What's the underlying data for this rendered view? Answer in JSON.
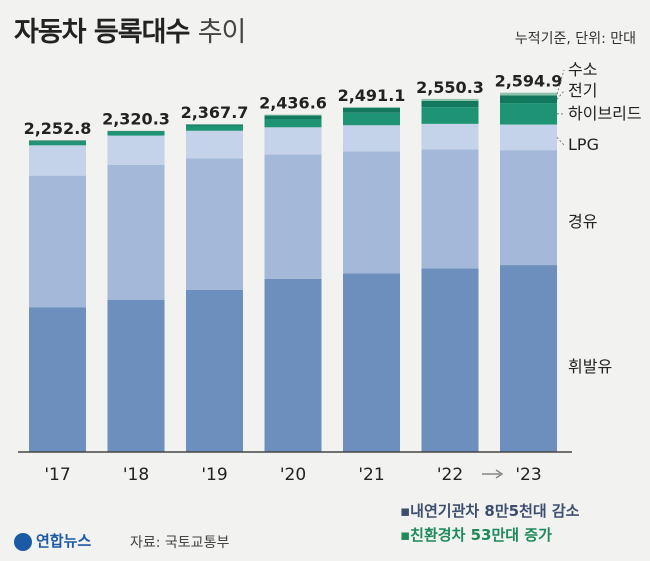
{
  "title": {
    "main": "자동차 등록대수",
    "sub": "추이"
  },
  "unit_note": "누적기준, 단위: 만대",
  "footnotes": {
    "decrease": "▪내연기관차 8만5천대 감소",
    "increase": "▪친환경차 53만대 증가"
  },
  "logo": "연합뉴스",
  "source": "자료: 국토교통부",
  "colors": {
    "gasoline": "#6c8fbd",
    "diesel": "#a4b9d9",
    "lpg": "#c5d3ea",
    "hybrid": "#1e9474",
    "electric": "#13795d",
    "hydrogen": "#8ec2ad",
    "axis": "#444444",
    "arrow": "#888888"
  },
  "chart_data": {
    "type": "bar",
    "stacked": true,
    "categories": [
      "'17",
      "'18",
      "'19",
      "'20",
      "'21",
      "'22",
      "'23"
    ],
    "totals": [
      2252.8,
      2320.3,
      2367.7,
      2436.6,
      2491.1,
      2550.3,
      2594.9
    ],
    "total_labels": [
      "2,252.8",
      "2,320.3",
      "2,367.7",
      "2,436.6",
      "2,491.1",
      "2,550.3",
      "2,594.9"
    ],
    "series": [
      {
        "name": "휘발유",
        "key": "gasoline",
        "values": [
          1046,
          1100,
          1170,
          1250,
          1290,
          1325,
          1350
        ]
      },
      {
        "name": "경유",
        "key": "diesel",
        "values": [
          950,
          975,
          950,
          900,
          880,
          860,
          830
        ]
      },
      {
        "name": "LPG",
        "key": "lpg",
        "values": [
          219,
          210,
          200,
          195,
          190,
          185,
          185
        ]
      },
      {
        "name": "하이브리드",
        "key": "hybrid",
        "values": [
          26,
          30,
          35,
          60,
          90,
          120,
          155
        ]
      },
      {
        "name": "전기",
        "key": "electric",
        "values": [
          8,
          3,
          10,
          25,
          35,
          45,
          55
        ]
      },
      {
        "name": "수소",
        "key": "hydrogen",
        "values": [
          3.8,
          2.3,
          2.7,
          6.6,
          6.1,
          15.3,
          19.9
        ]
      }
    ],
    "ylim": [
      0,
      2600
    ]
  }
}
